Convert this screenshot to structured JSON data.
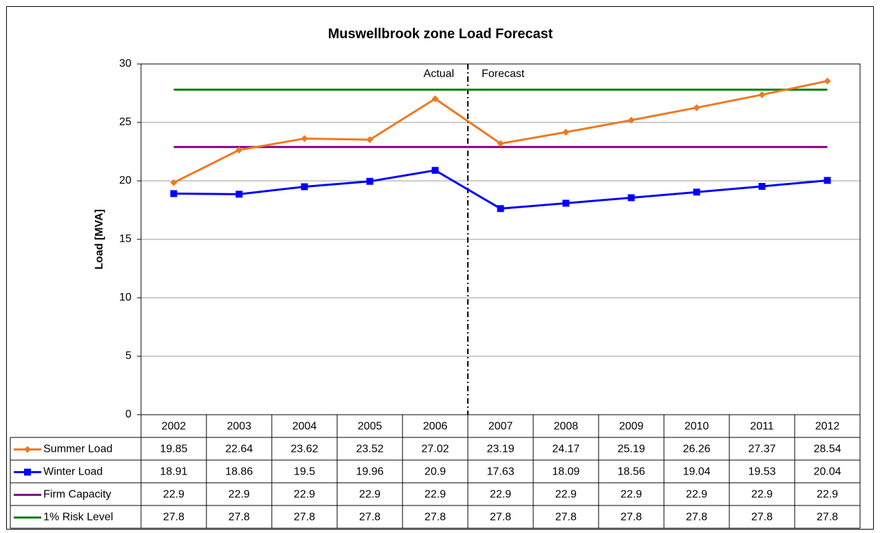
{
  "chart_data": {
    "type": "line",
    "title": "Muswellbrook zone Load Forecast",
    "y_label": "Load [MVA]",
    "annotations": [
      "Actual",
      "Forecast"
    ],
    "categories": [
      "2002",
      "2003",
      "2004",
      "2005",
      "2006",
      "2007",
      "2008",
      "2009",
      "2010",
      "2011",
      "2012"
    ],
    "series": [
      {
        "name": "Summer Load",
        "color": "#f07820",
        "marker": "diamond",
        "values": [
          19.85,
          22.64,
          23.62,
          23.52,
          27.02,
          23.19,
          24.17,
          25.19,
          26.26,
          27.37,
          28.54
        ]
      },
      {
        "name": "Winter Load",
        "color": "#0000ff",
        "marker": "square",
        "values": [
          18.91,
          18.86,
          19.5,
          19.96,
          20.9,
          17.63,
          18.09,
          18.56,
          19.04,
          19.53,
          20.04
        ]
      },
      {
        "name": "Firm Capacity",
        "color": "#800080",
        "marker": "none",
        "values": [
          22.9,
          22.9,
          22.9,
          22.9,
          22.9,
          22.9,
          22.9,
          22.9,
          22.9,
          22.9,
          22.9
        ]
      },
      {
        "name": "1% Risk Level",
        "color": "#008000",
        "marker": "none",
        "values": [
          27.8,
          27.8,
          27.8,
          27.8,
          27.8,
          27.8,
          27.8,
          27.8,
          27.8,
          27.8,
          27.8
        ]
      }
    ],
    "ylim": [
      0,
      30
    ],
    "yticks": [
      0,
      5,
      10,
      15,
      20,
      25,
      30
    ],
    "grid": true
  }
}
